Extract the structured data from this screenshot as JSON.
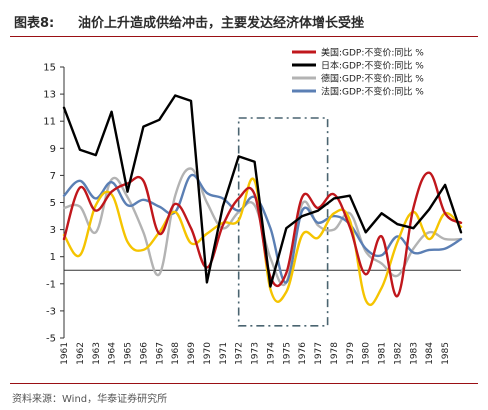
{
  "header": {
    "figure_label": "图表8:",
    "title": "油价上升造成供给冲击，主要发达经济体增长受挫"
  },
  "footer": {
    "source": "资料来源：Wind，华泰证券研究所"
  },
  "colors": {
    "us": "#c0171c",
    "japan": "#000000",
    "germany": "#b3b3b3",
    "uk": "#f5c400",
    "france": "#5b7fb4",
    "rule": "#9a0f14",
    "highlight_box": "#4a6470"
  },
  "chart_data": {
    "type": "line",
    "title": "",
    "xlabel": "",
    "ylabel": "",
    "ylim": [
      -5,
      15
    ],
    "yticks": [
      -5,
      -3,
      -1,
      1,
      3,
      5,
      7,
      9,
      11,
      13,
      15
    ],
    "grid": false,
    "legend_placement": "top-right",
    "x": [
      1961,
      1962,
      1963,
      1964,
      1965,
      1966,
      1967,
      1968,
      1969,
      1970,
      1971,
      1972,
      1973,
      1974,
      1975,
      1976,
      1977,
      1978,
      1979,
      1980,
      1981,
      1982,
      1983,
      1984,
      1985,
      1986
    ],
    "xtick_labels": [
      "1961",
      "1962",
      "1963",
      "1964",
      "1965",
      "1966",
      "1967",
      "1968",
      "1969",
      "1970",
      "1971",
      "1972",
      "1973",
      "1974",
      "1975",
      "1976",
      "1977",
      "1978",
      "1979",
      "1980",
      "1981",
      "1982",
      "1983",
      "1984",
      "1985"
    ],
    "highlight_range": [
      1972,
      1977.6
    ],
    "series": [
      {
        "key": "us",
        "name": "美国:GDP:不变价:同比 %",
        "values": [
          2.3,
          6.1,
          4.4,
          5.8,
          6.4,
          6.6,
          2.7,
          4.9,
          3.1,
          0.2,
          3.3,
          5.3,
          5.6,
          -0.5,
          -0.2,
          5.4,
          4.6,
          5.6,
          3.2,
          -0.3,
          2.5,
          -1.9,
          4.6,
          7.2,
          4.2,
          3.5
        ]
      },
      {
        "key": "japan",
        "name": "日本:GDP:不变价:同比 %",
        "values": [
          12.0,
          8.9,
          8.5,
          11.7,
          5.8,
          10.6,
          11.1,
          12.9,
          12.5,
          -0.9,
          4.7,
          8.4,
          8.0,
          -1.2,
          3.1,
          4.0,
          4.4,
          5.3,
          5.5,
          2.8,
          4.2,
          3.4,
          3.1,
          4.5,
          6.3,
          2.8
        ]
      },
      {
        "key": "germany",
        "name": "德国:GDP:不变价:同比 %",
        "values": [
          4.6,
          4.7,
          2.8,
          6.7,
          5.4,
          2.8,
          -0.3,
          5.5,
          7.5,
          5.0,
          3.1,
          4.3,
          4.8,
          0.9,
          -0.9,
          4.9,
          3.3,
          3.0,
          4.2,
          1.4,
          0.5,
          -0.4,
          1.6,
          2.8,
          2.3,
          2.3
        ]
      },
      {
        "key": "uk",
        "name": "",
        "values": [
          2.6,
          1.1,
          4.8,
          5.6,
          2.1,
          1.5,
          2.8,
          4.3,
          2.0,
          2.7,
          3.5,
          3.7,
          6.6,
          -1.4,
          -1.6,
          2.6,
          2.4,
          4.2,
          3.7,
          -2.2,
          -1.3,
          2.1,
          4.3,
          2.3,
          4.2,
          3.2
        ]
      },
      {
        "key": "france",
        "name": "法国:GDP:不变价:同比 %",
        "values": [
          5.5,
          6.6,
          5.3,
          6.5,
          4.8,
          5.2,
          4.7,
          4.3,
          7.0,
          5.7,
          5.3,
          4.4,
          5.4,
          3.1,
          -0.9,
          4.4,
          3.5,
          4.0,
          3.4,
          1.6,
          1.1,
          2.5,
          1.3,
          1.5,
          1.6,
          2.3
        ]
      }
    ]
  }
}
